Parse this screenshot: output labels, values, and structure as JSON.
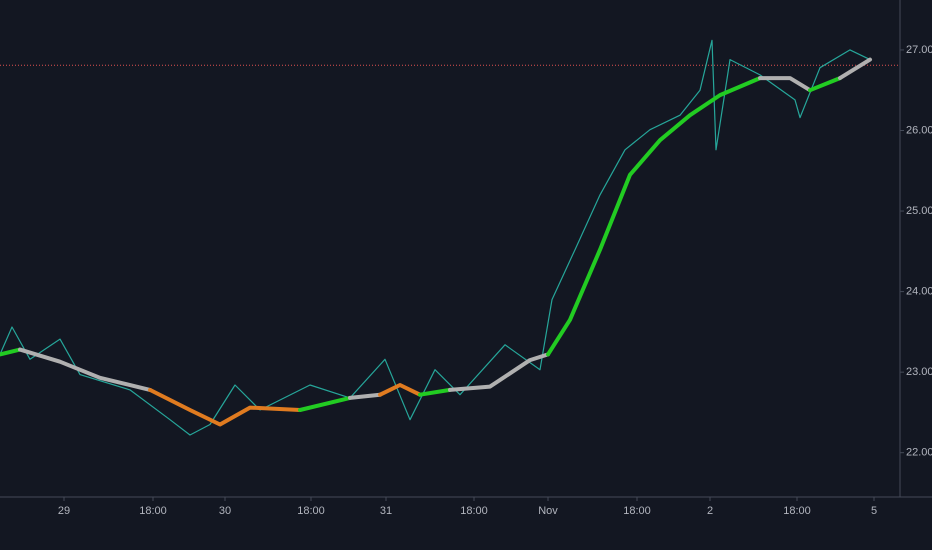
{
  "chart_data": {
    "type": "line",
    "xlim": [
      0,
      900
    ],
    "ylim": [
      21.45,
      27.62
    ],
    "xticks": [
      {
        "value": 64,
        "label": "29"
      },
      {
        "value": 153,
        "label": "18:00"
      },
      {
        "value": 225,
        "label": "30"
      },
      {
        "value": 311,
        "label": "18:00"
      },
      {
        "value": 386,
        "label": "31"
      },
      {
        "value": 474,
        "label": "18:00"
      },
      {
        "value": 548,
        "label": "Nov"
      },
      {
        "value": 637,
        "label": "18:00"
      },
      {
        "value": 710,
        "label": "2"
      },
      {
        "value": 797,
        "label": "18:00"
      },
      {
        "value": 874,
        "label": "5"
      }
    ],
    "yticks": [
      {
        "value": 22,
        "label": "22.00"
      },
      {
        "value": 23,
        "label": "23.00"
      },
      {
        "value": 24,
        "label": "24.00"
      },
      {
        "value": 25,
        "label": "25.00"
      },
      {
        "value": 26,
        "label": "26.00"
      },
      {
        "value": 27,
        "label": "27.00"
      }
    ],
    "hline": {
      "value": 26.81,
      "color": "#e05050"
    },
    "series": [
      {
        "color": "#26a69a",
        "width": 1.2,
        "x": [
          0,
          12,
          30,
          60,
          80,
          130,
          170,
          190,
          210,
          235,
          260,
          310,
          350,
          385,
          410,
          435,
          460,
          505,
          540,
          552,
          575,
          600,
          625,
          650,
          680,
          700,
          712,
          716,
          730,
          760,
          795,
          800,
          820,
          850,
          870
        ],
        "values": [
          23.22,
          23.56,
          23.16,
          23.41,
          22.97,
          22.78,
          22.41,
          22.22,
          22.35,
          22.84,
          22.53,
          22.84,
          22.68,
          23.16,
          22.41,
          23.03,
          22.72,
          23.34,
          23.03,
          23.9,
          24.52,
          25.2,
          25.76,
          26.01,
          26.19,
          26.5,
          27.12,
          25.76,
          26.88,
          26.69,
          26.38,
          26.16,
          26.78,
          27.0,
          26.88
        ]
      },
      {
        "color": "#22cc22",
        "width": 4,
        "x": [
          0,
          20
        ],
        "values": [
          23.22,
          23.28
        ]
      },
      {
        "color": "#b0b0b0",
        "width": 4,
        "x": [
          20,
          60,
          100,
          150
        ],
        "values": [
          23.28,
          23.13,
          22.93,
          22.78
        ]
      },
      {
        "color": "#e07b20",
        "width": 4,
        "x": [
          150,
          190,
          220,
          250,
          300
        ],
        "values": [
          22.78,
          22.53,
          22.35,
          22.56,
          22.53
        ]
      },
      {
        "color": "#22cc22",
        "width": 4,
        "x": [
          300,
          350
        ],
        "values": [
          22.53,
          22.68
        ]
      },
      {
        "color": "#b0b0b0",
        "width": 4,
        "x": [
          350,
          380
        ],
        "values": [
          22.68,
          22.72
        ]
      },
      {
        "color": "#e07b20",
        "width": 4,
        "x": [
          380,
          400,
          420
        ],
        "values": [
          22.72,
          22.84,
          22.72
        ]
      },
      {
        "color": "#22cc22",
        "width": 4,
        "x": [
          420,
          450
        ],
        "values": [
          22.72,
          22.78
        ]
      },
      {
        "color": "#b0b0b0",
        "width": 4,
        "x": [
          450,
          490,
          530,
          548
        ],
        "values": [
          22.78,
          22.82,
          23.15,
          23.22
        ]
      },
      {
        "color": "#22cc22",
        "width": 4,
        "x": [
          548,
          570,
          600,
          630,
          660,
          690,
          720,
          760
        ],
        "values": [
          23.22,
          23.65,
          24.52,
          25.45,
          25.88,
          26.19,
          26.44,
          26.65
        ]
      },
      {
        "color": "#b0b0b0",
        "width": 4,
        "x": [
          760,
          790,
          810
        ],
        "values": [
          26.65,
          26.65,
          26.5
        ]
      },
      {
        "color": "#22cc22",
        "width": 4,
        "x": [
          810,
          840
        ],
        "values": [
          26.5,
          26.65
        ]
      },
      {
        "color": "#b0b0b0",
        "width": 4,
        "x": [
          840,
          870
        ],
        "values": [
          26.65,
          26.88
        ]
      }
    ]
  }
}
